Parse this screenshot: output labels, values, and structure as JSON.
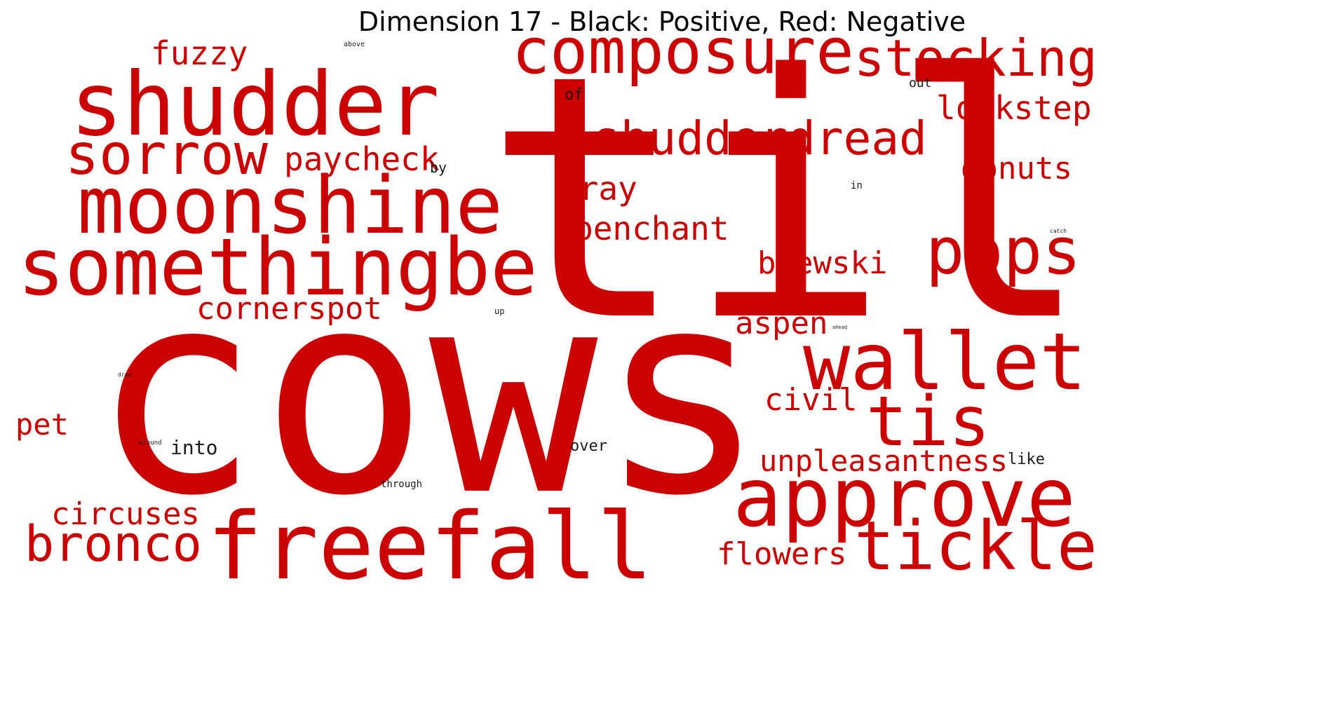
{
  "title": "Dimension 17 - Black: Positive, Red: Negative",
  "colors": {
    "positive": "#1a1a1a",
    "negative": "#cc0000",
    "background": "#ffffff"
  },
  "words": [
    {
      "text": "cows",
      "sign": "negative"
    },
    {
      "text": "til",
      "sign": "negative"
    },
    {
      "text": "shudder",
      "sign": "negative"
    },
    {
      "text": "freefall",
      "sign": "negative"
    },
    {
      "text": "somethingbe",
      "sign": "negative"
    },
    {
      "text": "moonshine",
      "sign": "negative"
    },
    {
      "text": "approve",
      "sign": "negative"
    },
    {
      "text": "composure",
      "sign": "negative"
    },
    {
      "text": "wallet",
      "sign": "negative"
    },
    {
      "text": "tis",
      "sign": "negative"
    },
    {
      "text": "sorrow",
      "sign": "negative"
    },
    {
      "text": "tickle",
      "sign": "negative"
    },
    {
      "text": "stocking",
      "sign": "negative"
    },
    {
      "text": "pops",
      "sign": "negative"
    },
    {
      "text": "bronco",
      "sign": "negative"
    },
    {
      "text": "shudderdread",
      "sign": "negative"
    },
    {
      "text": "fuzzy",
      "sign": "negative"
    },
    {
      "text": "paycheck",
      "sign": "negative"
    },
    {
      "text": "lockstep",
      "sign": "negative"
    },
    {
      "text": "donuts",
      "sign": "negative"
    },
    {
      "text": "bray",
      "sign": "negative"
    },
    {
      "text": "penchant",
      "sign": "negative"
    },
    {
      "text": "brewski",
      "sign": "negative"
    },
    {
      "text": "cornerspot",
      "sign": "negative"
    },
    {
      "text": "aspen",
      "sign": "negative"
    },
    {
      "text": "civil",
      "sign": "negative"
    },
    {
      "text": "unpleasantness",
      "sign": "negative"
    },
    {
      "text": "circuses",
      "sign": "negative"
    },
    {
      "text": "flowers",
      "sign": "negative"
    },
    {
      "text": "pet",
      "sign": "negative"
    },
    {
      "text": "above",
      "sign": "positive"
    },
    {
      "text": "of",
      "sign": "positive"
    },
    {
      "text": "out",
      "sign": "positive"
    },
    {
      "text": "by",
      "sign": "positive"
    },
    {
      "text": "in",
      "sign": "positive"
    },
    {
      "text": "catch",
      "sign": "positive"
    },
    {
      "text": "up",
      "sign": "positive"
    },
    {
      "text": "ahead",
      "sign": "positive"
    },
    {
      "text": "draw",
      "sign": "positive"
    },
    {
      "text": "around",
      "sign": "positive"
    },
    {
      "text": "into",
      "sign": "positive"
    },
    {
      "text": "over",
      "sign": "positive"
    },
    {
      "text": "like",
      "sign": "positive"
    },
    {
      "text": "through",
      "sign": "positive"
    }
  ]
}
